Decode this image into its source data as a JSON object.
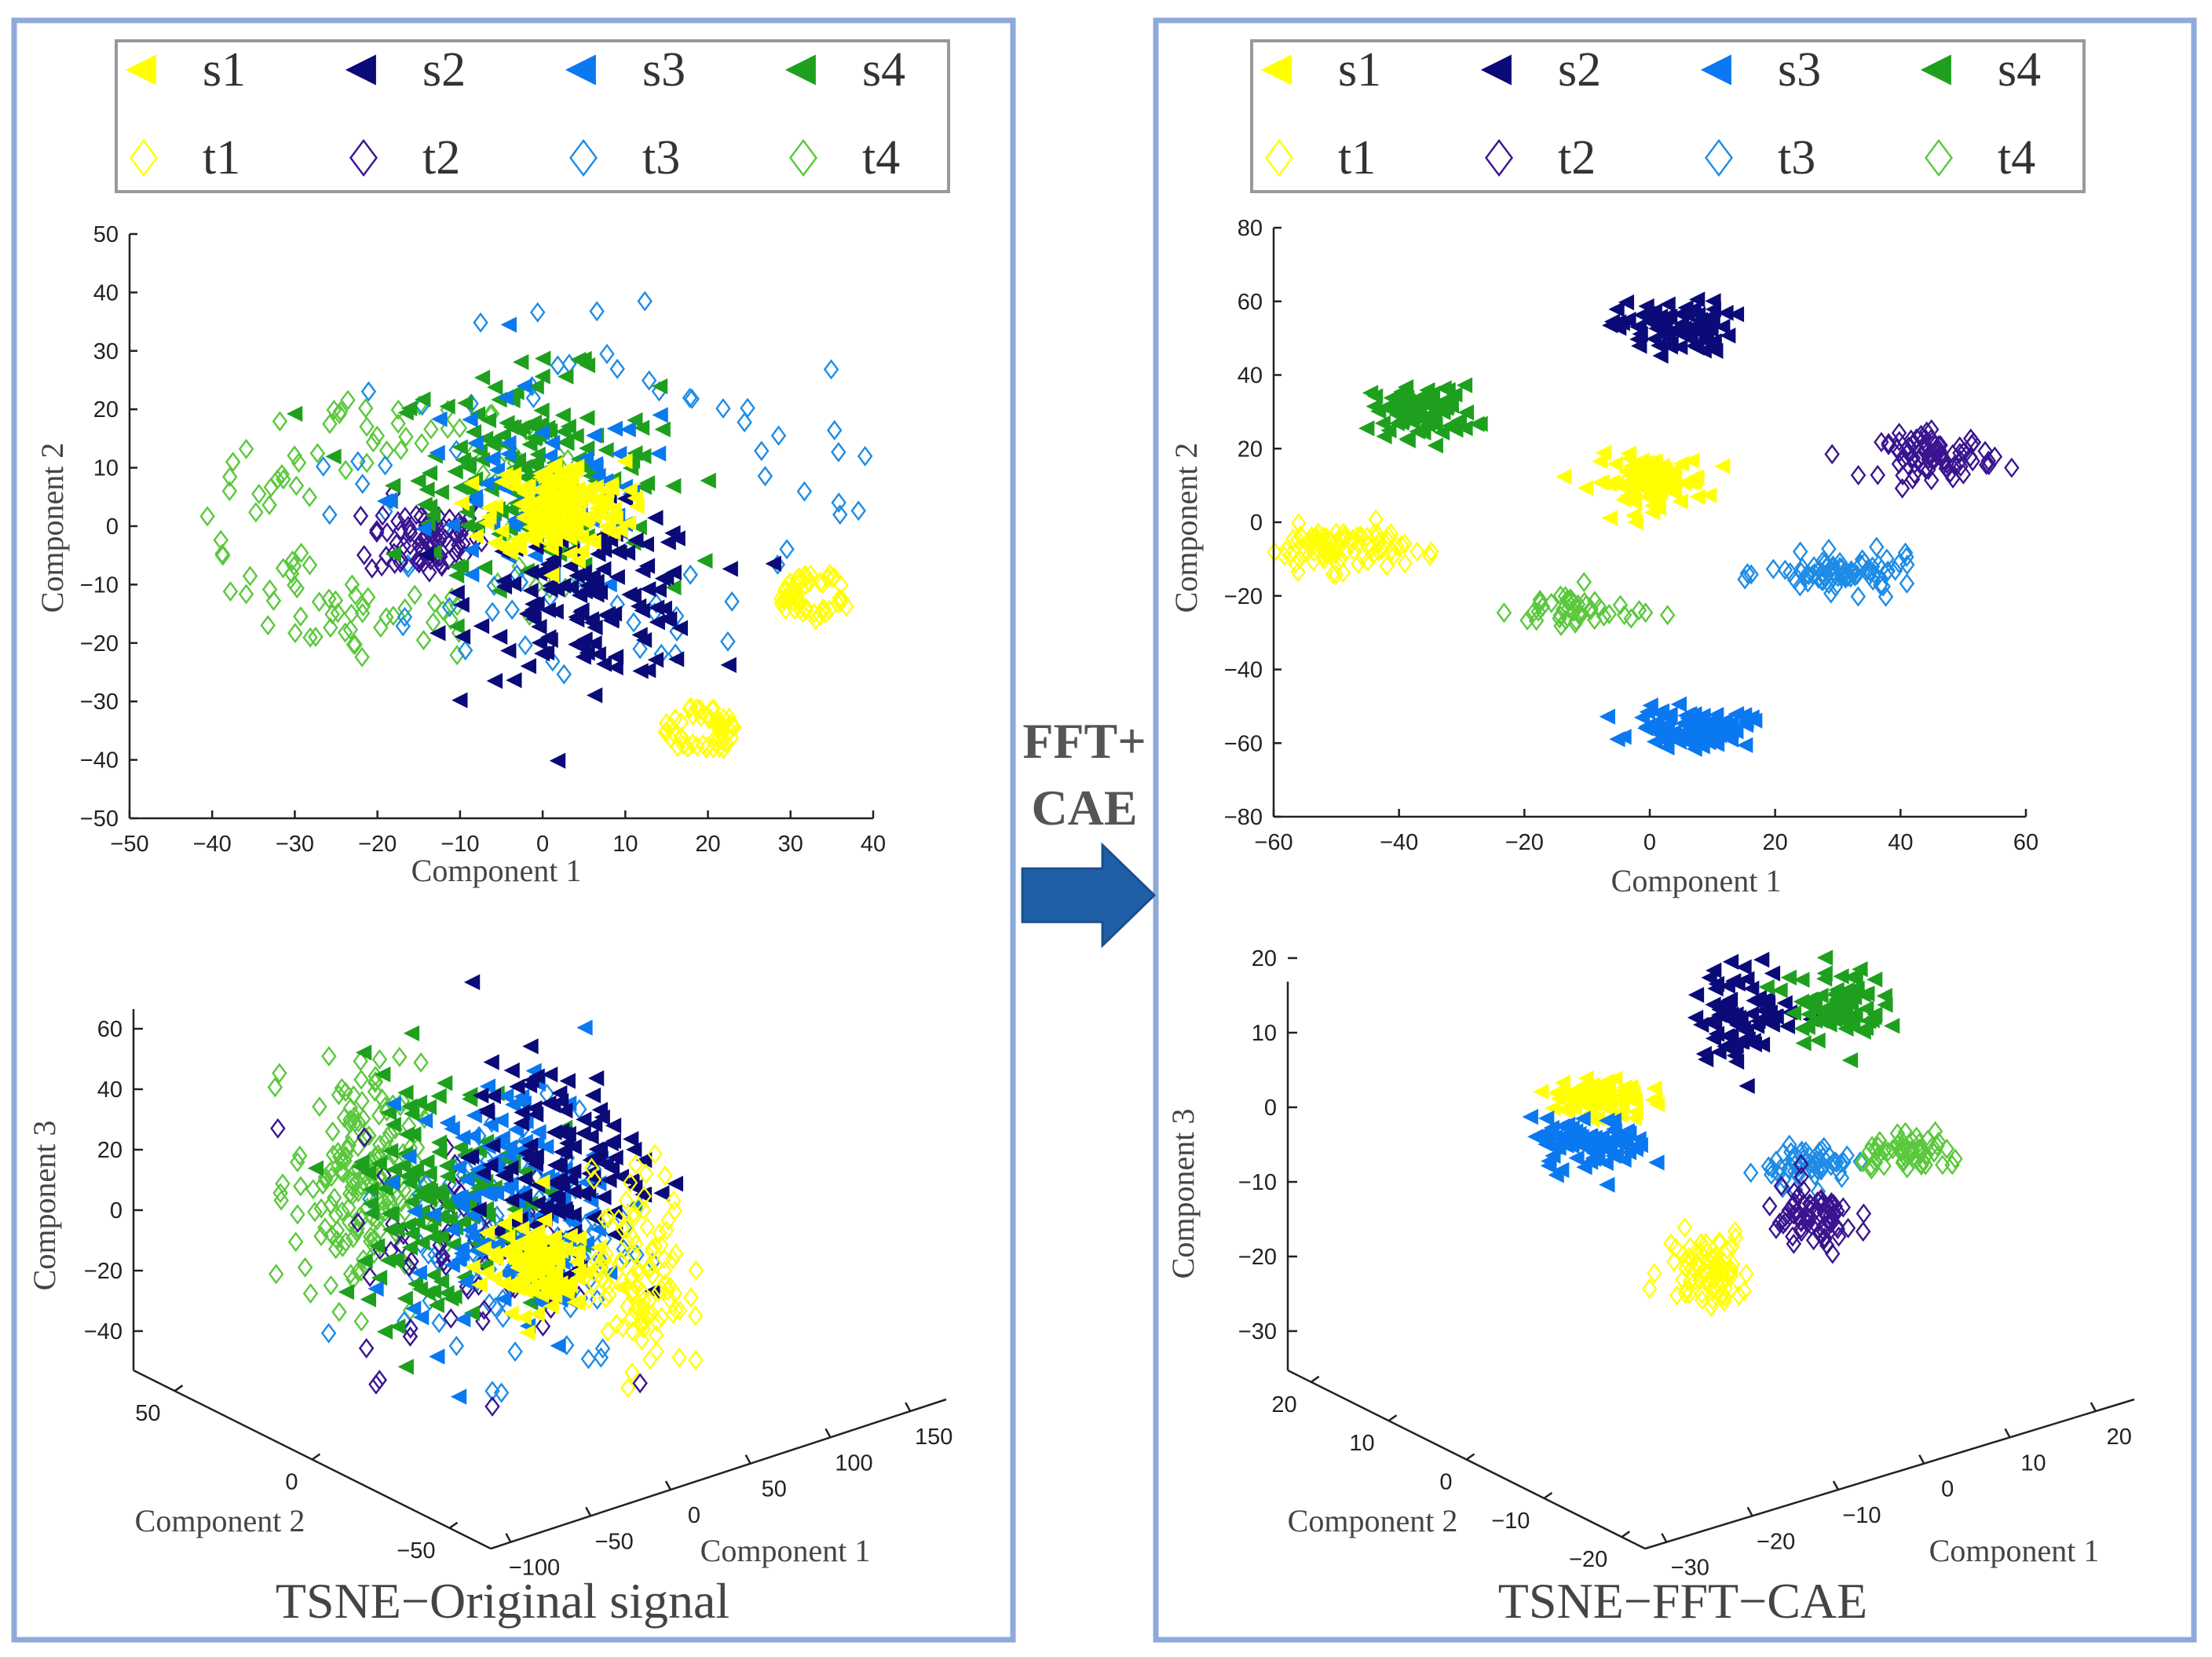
{
  "colors": {
    "s1": "#ffff00",
    "s2": "#0a0a78",
    "s3": "#0a78f0",
    "s4": "#1ea01e",
    "t1": "#ffff00",
    "t2": "#3a1490",
    "t3": "#1e8ce6",
    "t4": "#5ac83c",
    "frame": "#8eaadb",
    "arrow": "#1f5fa8"
  },
  "legend": [
    {
      "key": "s1",
      "label": "s1",
      "marker": "triangle-left"
    },
    {
      "key": "s2",
      "label": "s2",
      "marker": "triangle-left"
    },
    {
      "key": "s3",
      "label": "s3",
      "marker": "triangle-left"
    },
    {
      "key": "s4",
      "label": "s4",
      "marker": "triangle-left"
    },
    {
      "key": "t1",
      "label": "t1",
      "marker": "diamond"
    },
    {
      "key": "t2",
      "label": "t2",
      "marker": "diamond"
    },
    {
      "key": "t3",
      "label": "t3",
      "marker": "diamond"
    },
    {
      "key": "t4",
      "label": "t4",
      "marker": "diamond"
    }
  ],
  "arrow": {
    "line1": "FFT+",
    "line2": "CAE"
  },
  "captions": {
    "left": "TSNE−Original signal",
    "right": "TSNE−FFT−CAE"
  },
  "chart_data": [
    {
      "id": "left2d",
      "type": "scatter",
      "title": "",
      "xlabel": "Component 1",
      "ylabel": "Component 2",
      "xlim": [
        -50,
        40
      ],
      "ylim": [
        -50,
        50
      ],
      "xticks": [
        -50,
        -40,
        -30,
        -20,
        -10,
        0,
        10,
        20,
        30,
        40
      ],
      "yticks": [
        -50,
        -40,
        -30,
        -20,
        -10,
        0,
        10,
        20,
        30,
        40,
        50
      ],
      "clusters": [
        {
          "series": "t4",
          "shape": "ring",
          "cx": -17,
          "cy": 0,
          "r": 22,
          "n": 120
        },
        {
          "series": "t3",
          "shape": "ring",
          "cx": 7,
          "cy": 7,
          "r": 32,
          "n": 70
        },
        {
          "series": "t2",
          "shape": "blob",
          "cx": -14,
          "cy": -2,
          "r": 7,
          "n": 80
        },
        {
          "series": "s4",
          "shape": "blob",
          "cx": -2,
          "cy": 10,
          "r": 16,
          "n": 160
        },
        {
          "series": "s3",
          "shape": "blob",
          "cx": 0,
          "cy": 5,
          "r": 18,
          "n": 70
        },
        {
          "series": "s2",
          "shape": "blob",
          "cx": 6,
          "cy": -12,
          "r": 14,
          "n": 140
        },
        {
          "series": "s1",
          "shape": "blob",
          "cx": 2,
          "cy": 3,
          "r": 8,
          "n": 180
        },
        {
          "series": "t1",
          "shape": "ring",
          "cx": 33,
          "cy": -12,
          "r": 4,
          "n": 55
        },
        {
          "series": "t1",
          "shape": "ring",
          "cx": 19,
          "cy": -35,
          "r": 4,
          "n": 55
        }
      ]
    },
    {
      "id": "right2d",
      "type": "scatter",
      "title": "",
      "xlabel": "Component 1",
      "ylabel": "Component 2",
      "xlim": [
        -60,
        60
      ],
      "ylim": [
        -80,
        80
      ],
      "xticks": [
        -60,
        -40,
        -20,
        0,
        20,
        40,
        60
      ],
      "yticks": [
        -80,
        -60,
        -40,
        -20,
        0,
        20,
        40,
        60,
        80
      ],
      "clusters": [
        {
          "series": "s2",
          "shape": "blob",
          "cx": 4,
          "cy": 53,
          "rx": 9,
          "ry": 7,
          "n": 90
        },
        {
          "series": "s4",
          "shape": "blob",
          "cx": -36,
          "cy": 30,
          "rx": 8,
          "ry": 7,
          "n": 90
        },
        {
          "series": "s1",
          "shape": "blob",
          "cx": 0,
          "cy": 11,
          "rx": 9,
          "ry": 7,
          "n": 100
        },
        {
          "series": "t2",
          "shape": "blob",
          "cx": 46,
          "cy": 18,
          "rx": 9,
          "ry": 6,
          "n": 80
        },
        {
          "series": "t1",
          "shape": "blob",
          "cx": -50,
          "cy": -7,
          "rx": 11,
          "ry": 6,
          "n": 100
        },
        {
          "series": "t3",
          "shape": "blob",
          "cx": 31,
          "cy": -14,
          "rx": 12,
          "ry": 5,
          "n": 80
        },
        {
          "series": "t4",
          "shape": "blob",
          "cx": -12,
          "cy": -24,
          "rx": 10,
          "ry": 6,
          "n": 45
        },
        {
          "series": "s3",
          "shape": "blob",
          "cx": 7,
          "cy": -56,
          "rx": 9,
          "ry": 5,
          "n": 90
        }
      ]
    },
    {
      "id": "left3d",
      "type": "scatter3d",
      "title": "",
      "xlabel": "Component 1",
      "ylabel": "Component 2",
      "zlabel": "Component 3",
      "xticks": [
        -100,
        -50,
        0,
        50,
        100,
        150
      ],
      "yticks": [
        -50,
        0,
        50
      ],
      "zticks": [
        -40,
        -20,
        0,
        20,
        40,
        60
      ],
      "clusters": [
        {
          "series": "t4",
          "shape": "blob",
          "cx": -0.55,
          "cy": 0.15,
          "rx": 0.3,
          "ry": 0.65,
          "n": 170
        },
        {
          "series": "t3",
          "shape": "blob",
          "cx": 0.15,
          "cy": -0.1,
          "rx": 0.55,
          "ry": 0.72,
          "n": 120
        },
        {
          "series": "t2",
          "shape": "blob",
          "cx": -0.05,
          "cy": -0.2,
          "rx": 0.55,
          "ry": 0.65,
          "n": 60
        },
        {
          "series": "s4",
          "shape": "blob",
          "cx": -0.2,
          "cy": 0.1,
          "rx": 0.5,
          "ry": 0.7,
          "n": 140
        },
        {
          "series": "s3",
          "shape": "blob",
          "cx": 0.1,
          "cy": 0.05,
          "rx": 0.45,
          "ry": 0.7,
          "n": 120
        },
        {
          "series": "s2",
          "shape": "blob",
          "cx": 0.3,
          "cy": 0.25,
          "rx": 0.4,
          "ry": 0.55,
          "n": 120
        },
        {
          "series": "s1",
          "shape": "blob",
          "cx": 0.2,
          "cy": -0.25,
          "rx": 0.25,
          "ry": 0.25,
          "n": 120
        },
        {
          "series": "t1",
          "shape": "blob",
          "cx": 0.65,
          "cy": -0.3,
          "rx": 0.22,
          "ry": 0.55,
          "n": 110
        }
      ]
    },
    {
      "id": "right3d",
      "type": "scatter3d",
      "title": "",
      "xlabel": "Component 1",
      "ylabel": "Component 2",
      "zlabel": "Component 3",
      "xticks": [
        -30,
        -20,
        -10,
        0,
        10,
        20
      ],
      "yticks": [
        -20,
        -10,
        0,
        10,
        20
      ],
      "zticks": [
        -30,
        -20,
        -10,
        0,
        10,
        20
      ],
      "clusters": [
        {
          "series": "s2",
          "shape": "blob",
          "cx": -0.05,
          "cy": 0.75,
          "rx": 0.22,
          "ry": 0.28,
          "n": 80
        },
        {
          "series": "s4",
          "shape": "blob",
          "cx": 0.3,
          "cy": 0.8,
          "rx": 0.2,
          "ry": 0.22,
          "n": 80
        },
        {
          "series": "s1",
          "shape": "blob",
          "cx": -0.62,
          "cy": 0.3,
          "rx": 0.2,
          "ry": 0.13,
          "n": 80
        },
        {
          "series": "s3",
          "shape": "blob",
          "cx": -0.65,
          "cy": 0.05,
          "rx": 0.25,
          "ry": 0.15,
          "n": 80
        },
        {
          "series": "t3",
          "shape": "blob",
          "cx": 0.2,
          "cy": -0.05,
          "rx": 0.18,
          "ry": 0.12,
          "n": 60
        },
        {
          "series": "t4",
          "shape": "blob",
          "cx": 0.6,
          "cy": 0.0,
          "rx": 0.22,
          "ry": 0.1,
          "n": 60
        },
        {
          "series": "t2",
          "shape": "blob",
          "cx": 0.2,
          "cy": -0.35,
          "rx": 0.2,
          "ry": 0.2,
          "n": 70
        },
        {
          "series": "t1",
          "shape": "blob",
          "cx": -0.2,
          "cy": -0.6,
          "rx": 0.18,
          "ry": 0.22,
          "n": 80
        }
      ]
    }
  ]
}
